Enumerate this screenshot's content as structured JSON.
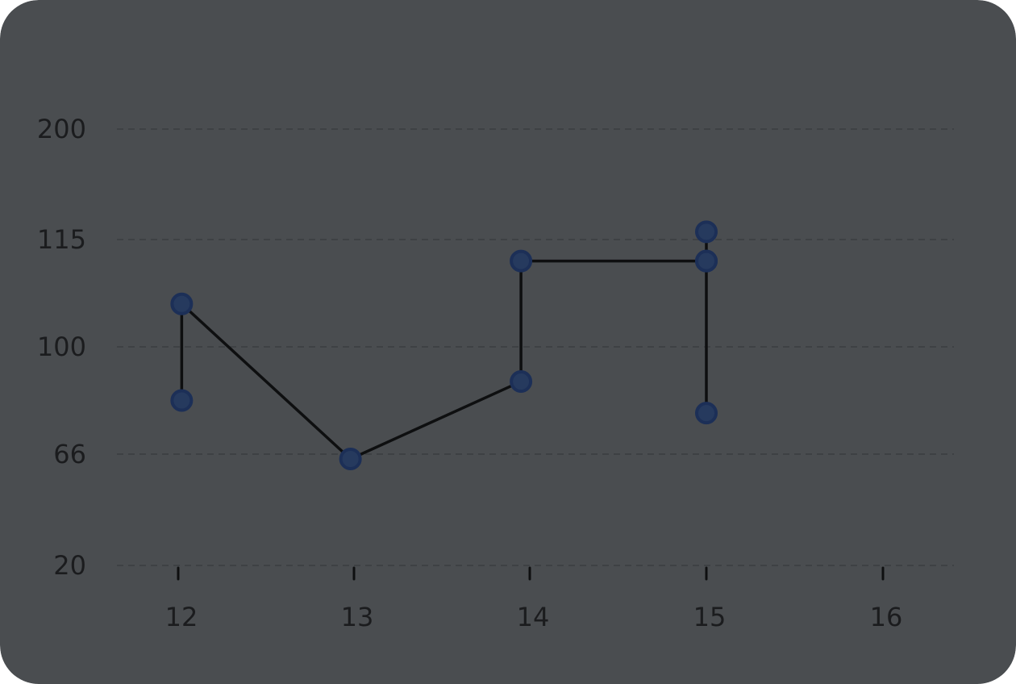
{
  "theme": {
    "background": "#4a4d50",
    "gridline": "#3e4144",
    "line": "#0e0f10",
    "marker_fill": "#263a5e",
    "marker_stroke": "#1c2f57",
    "text": "#1b1c1e"
  },
  "chart_data": {
    "type": "line",
    "title": "",
    "xlabel": "",
    "ylabel": "",
    "x_ticks": [
      "12",
      "13",
      "14",
      "15",
      "16"
    ],
    "y_ticks": [
      "200",
      "115",
      "100",
      "66",
      "20"
    ],
    "y_scale": "ordinal-spaced ticks (200, 115, 100, 66, 20 evenly spaced)",
    "grid": true,
    "legend": "none",
    "series": [
      {
        "points": [
          {
            "x": 12.02,
            "y": 83
          },
          {
            "x": 12.02,
            "y": 106
          },
          {
            "x": 12.98,
            "y": 64
          },
          {
            "x": 13.95,
            "y": 89
          },
          {
            "x": 13.95,
            "y": 112
          },
          {
            "x": 15.0,
            "y": 112
          },
          {
            "x": 15.0,
            "y": 121
          },
          {
            "x": 15.0,
            "y": 112
          },
          {
            "x": 15.0,
            "y": 79
          }
        ]
      }
    ]
  }
}
